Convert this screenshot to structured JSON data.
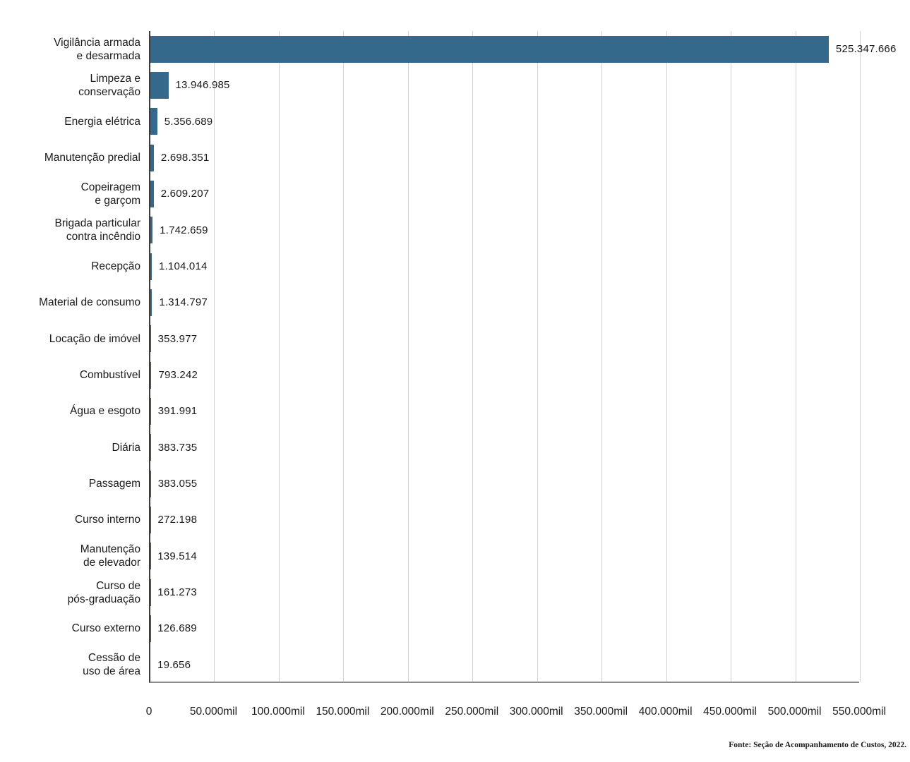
{
  "chart_data": {
    "type": "bar",
    "orientation": "horizontal",
    "title": "",
    "xlabel": "",
    "ylabel": "",
    "xlim": [
      0,
      550000000
    ],
    "grid": "vertical",
    "bar_color": "#35698C",
    "categories": [
      "Vigilância armada\ne desarmada",
      "Limpeza e\nconservação",
      "Energia elétrica",
      "Manutenção predial",
      "Copeiragem\ne garçom",
      "Brigada particular\ncontra incêndio",
      "Recepção",
      "Material de consumo",
      "Locação de imóvel",
      "Combustível",
      "Água e esgoto",
      "Diária",
      "Passagem",
      "Curso interno",
      "Manutenção\nde elevador",
      "Curso de\npós-graduação",
      "Curso externo",
      "Cessão de\nuso de área"
    ],
    "values": [
      525347666,
      13946985,
      5356689,
      2698351,
      2609207,
      1742659,
      1104014,
      1314797,
      353977,
      793242,
      391991,
      383735,
      383055,
      272198,
      139514,
      161273,
      126689,
      19656
    ],
    "value_labels": [
      "525.347.666",
      "13.946.985",
      "5.356.689",
      "2.698.351",
      "2.609.207",
      "1.742.659",
      "1.104.014",
      "1.314.797",
      "353.977",
      "793.242",
      "391.991",
      "383.735",
      "383.055",
      "272.198",
      "139.514",
      "161.273",
      "126.689",
      "19.656"
    ],
    "x_tick_labels": [
      "0",
      "50.000mil",
      "100.000mil",
      "150.000mil",
      "200.000mil",
      "250.000mil",
      "300.000mil",
      "350.000mil",
      "400.000mil",
      "450.000mil",
      "500.000mil",
      "550.000mil"
    ],
    "source": "Fonte: Seção de Acompanhamento de Custos, 2022."
  }
}
